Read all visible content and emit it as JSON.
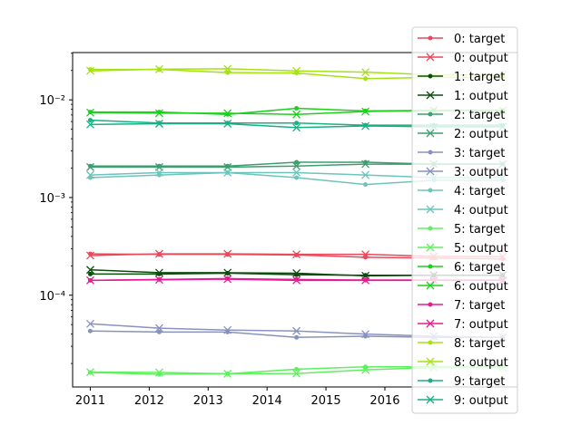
{
  "chart_data": {
    "type": "line",
    "title": "",
    "xlabel": "",
    "ylabel": "",
    "yscale": "log",
    "xlim": [
      2010.7,
      2018.25
    ],
    "ylim": [
      1.15e-05,
      0.0305
    ],
    "grid": false,
    "legend_position": "right",
    "x": [
      2011,
      2012.17,
      2013.33,
      2014.5,
      2015.67,
      2016.83,
      2018
    ],
    "x_ticks": [
      2011,
      2012,
      2013,
      2014,
      2015,
      2016
    ],
    "x_tick_labels": [
      "2011",
      "2012",
      "2013",
      "2014",
      "2015",
      "2016"
    ],
    "y_ticks": [
      0.0001,
      0.001,
      0.01
    ],
    "y_tick_labels": [
      "10⁻⁴",
      "10⁻³",
      "10⁻²"
    ],
    "series": [
      {
        "name": "0: target",
        "marker": "dot",
        "color": "#e8495b",
        "values": [
          0.000265,
          0.000262,
          0.000262,
          0.000258,
          0.000245,
          0.00024,
          0.000235
        ]
      },
      {
        "name": "0: output",
        "marker": "x",
        "color": "#e8495b",
        "values": [
          0.000255,
          0.000265,
          0.000265,
          0.000262,
          0.000262,
          0.00025,
          0.000248
        ]
      },
      {
        "name": "1: target",
        "marker": "dot",
        "color": "#0b4d0b",
        "values": [
          0.000165,
          0.000165,
          0.000168,
          0.000162,
          0.00016,
          0.00016,
          0.00016
        ]
      },
      {
        "name": "1: output",
        "marker": "x",
        "color": "#0b4d0b",
        "values": [
          0.000182,
          0.00017,
          0.00017,
          0.000168,
          0.000158,
          0.00016,
          0.00016
        ]
      },
      {
        "name": "2: target",
        "marker": "dot",
        "color": "#3d9e6e",
        "values": [
          0.0021,
          0.0021,
          0.0021,
          0.0023,
          0.0023,
          0.0022,
          0.0022
        ]
      },
      {
        "name": "2: output",
        "marker": "x",
        "color": "#3d9e6e",
        "values": [
          0.00205,
          0.00205,
          0.00205,
          0.0021,
          0.0022,
          0.0022,
          0.0022
        ]
      },
      {
        "name": "3: target",
        "marker": "dot",
        "color": "#8892bd",
        "values": [
          4.3e-05,
          4.2e-05,
          4.2e-05,
          3.7e-05,
          3.8e-05,
          3.7e-05,
          3.7e-05
        ]
      },
      {
        "name": "3: output",
        "marker": "x",
        "color": "#8892bd",
        "values": [
          5.1e-05,
          4.6e-05,
          4.4e-05,
          4.3e-05,
          4e-05,
          3.8e-05,
          3.7e-05
        ]
      },
      {
        "name": "4: target",
        "marker": "dot",
        "color": "#6cc4bb",
        "values": [
          0.0016,
          0.0017,
          0.0018,
          0.0016,
          0.00136,
          0.0015,
          0.0015
        ]
      },
      {
        "name": "4: output",
        "marker": "x",
        "color": "#6cc4bb",
        "values": [
          0.0017,
          0.0018,
          0.0018,
          0.0018,
          0.0017,
          0.0016,
          0.0016
        ]
      },
      {
        "name": "5: target",
        "marker": "dot",
        "color": "#5ef05e",
        "values": [
          1.62e-05,
          1.55e-05,
          1.57e-05,
          1.75e-05,
          1.85e-05,
          1.85e-05,
          1.85e-05
        ]
      },
      {
        "name": "5: output",
        "marker": "x",
        "color": "#5ef05e",
        "values": [
          1.63e-05,
          1.62e-05,
          1.57e-05,
          1.58e-05,
          1.72e-05,
          1.82e-05,
          1.82e-05
        ]
      },
      {
        "name": "6: target",
        "marker": "dot",
        "color": "#1cd11c",
        "values": [
          0.0075,
          0.0075,
          0.0071,
          0.0082,
          0.0077,
          0.0078,
          0.0078
        ]
      },
      {
        "name": "6: output",
        "marker": "x",
        "color": "#1cd11c",
        "values": [
          0.0074,
          0.0073,
          0.0073,
          0.0071,
          0.0076,
          0.0078,
          0.0078
        ]
      },
      {
        "name": "7: target",
        "marker": "dot",
        "color": "#e81b93",
        "values": [
          0.000142,
          0.000145,
          0.000148,
          0.000145,
          0.000143,
          0.000143,
          0.000143
        ]
      },
      {
        "name": "7: output",
        "marker": "x",
        "color": "#e81b93",
        "values": [
          0.000142,
          0.000144,
          0.000146,
          0.000142,
          0.000142,
          0.000142,
          0.000142
        ]
      },
      {
        "name": "8: target",
        "marker": "dot",
        "color": "#a5e214",
        "values": [
          0.0205,
          0.0205,
          0.019,
          0.0188,
          0.0165,
          0.017,
          0.017
        ]
      },
      {
        "name": "8: output",
        "marker": "x",
        "color": "#a5e214",
        "values": [
          0.0198,
          0.0206,
          0.0208,
          0.0198,
          0.0192,
          0.018,
          0.018
        ]
      },
      {
        "name": "9: target",
        "marker": "dot",
        "color": "#1aaf84",
        "values": [
          0.0062,
          0.0058,
          0.0058,
          0.0058,
          0.0055,
          0.0055,
          0.0055
        ]
      },
      {
        "name": "9: output",
        "marker": "x",
        "color": "#1aaf84",
        "values": [
          0.0056,
          0.0057,
          0.0057,
          0.0052,
          0.0054,
          0.0053,
          0.0053
        ]
      }
    ]
  }
}
